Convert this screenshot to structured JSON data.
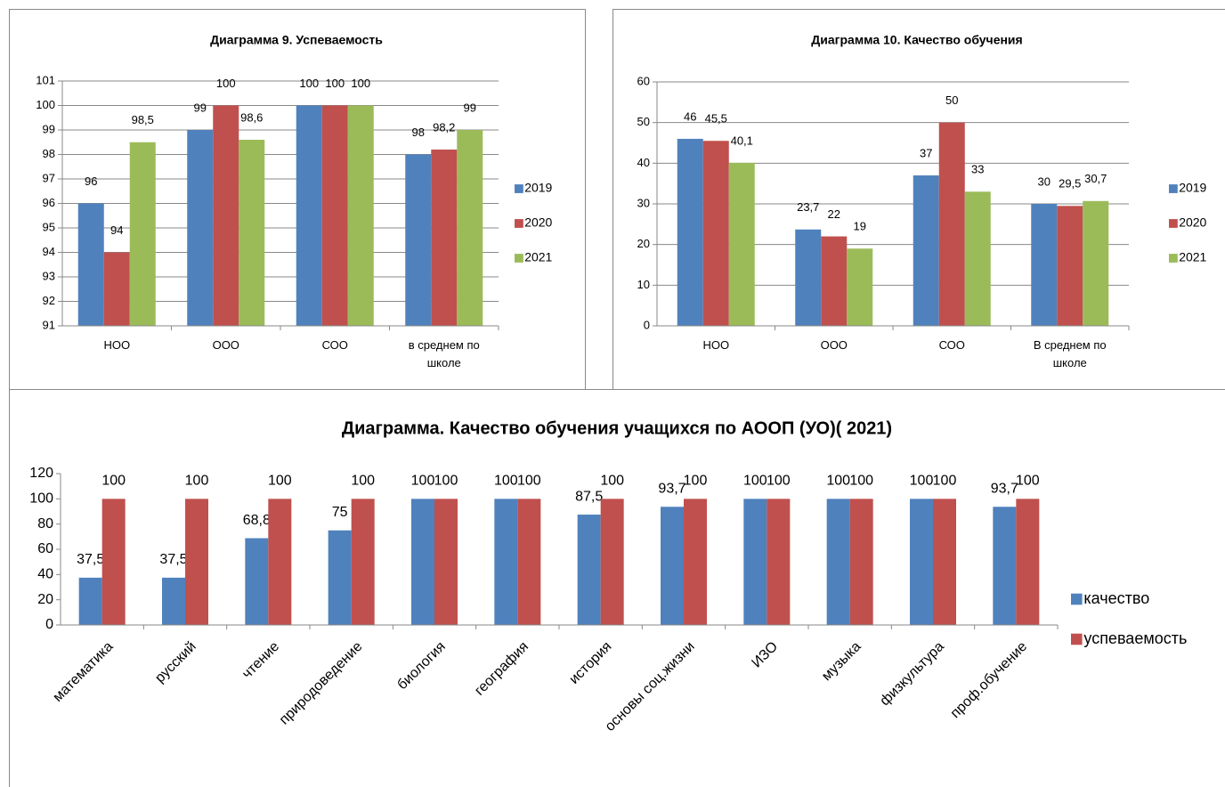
{
  "chart_data": [
    {
      "type": "bar",
      "title": "Диаграмма 9. Успеваемость",
      "categories": [
        "НОО",
        "ООО",
        "СОО",
        "в среднем по школе"
      ],
      "series": [
        {
          "name": "2019",
          "color": "#4f81bd",
          "values": [
            96,
            99,
            100,
            98
          ],
          "value_labels": [
            "96",
            "99",
            "100",
            "98"
          ]
        },
        {
          "name": "2020",
          "color": "#c0504d",
          "values": [
            94,
            100,
            100,
            98.2
          ],
          "value_labels": [
            "94",
            "100",
            "100",
            "98,2"
          ]
        },
        {
          "name": "2021",
          "color": "#9bbb59",
          "values": [
            98.5,
            98.6,
            100,
            99
          ],
          "value_labels": [
            "98,5",
            "98,6",
            "100",
            "99"
          ]
        }
      ],
      "ylim": [
        91,
        101
      ],
      "yticks": [
        91,
        92,
        93,
        94,
        95,
        96,
        97,
        98,
        99,
        100,
        101
      ],
      "grid": true,
      "legend": "right"
    },
    {
      "type": "bar",
      "title": "Диаграмма 10. Качество обучения",
      "categories": [
        "НОО",
        "ООО",
        "СОО",
        "В среднем по школе"
      ],
      "series": [
        {
          "name": "2019",
          "color": "#4f81bd",
          "values": [
            46,
            23.7,
            37,
            30
          ],
          "value_labels": [
            "46",
            "23,7",
            "37",
            "30"
          ]
        },
        {
          "name": "2020",
          "color": "#c0504d",
          "values": [
            45.5,
            22,
            50,
            29.5
          ],
          "value_labels": [
            "45,5",
            "22",
            "50",
            "29,5"
          ]
        },
        {
          "name": "2021",
          "color": "#9bbb59",
          "values": [
            40.1,
            19,
            33,
            30.7
          ],
          "value_labels": [
            "40,1",
            "19",
            "33",
            "30,7"
          ]
        }
      ],
      "ylim": [
        0,
        60
      ],
      "yticks": [
        0,
        10,
        20,
        30,
        40,
        50,
        60
      ],
      "grid": true,
      "legend": "right"
    },
    {
      "type": "bar",
      "title": "Диаграмма. Качество обучения учащихся по АООП (УО)( 2021)",
      "categories": [
        "математика",
        "русский",
        "чтение",
        "природоведение",
        "биология",
        "география",
        "история",
        "основы соц.жизни",
        "ИЗО",
        "музыка",
        "физкультура",
        "проф.обучение"
      ],
      "series": [
        {
          "name": "качество",
          "color": "#4f81bd",
          "values": [
            37.5,
            37.5,
            68.8,
            75,
            100,
            100,
            87.5,
            93.7,
            100,
            100,
            100,
            93.7
          ],
          "value_labels": [
            "37,5",
            "37,5",
            "68,8",
            "75",
            "100",
            "100",
            "87,5",
            "93,7",
            "100",
            "100",
            "100",
            "93,7"
          ]
        },
        {
          "name": "успеваемость",
          "color": "#c0504d",
          "values": [
            100,
            100,
            100,
            100,
            100,
            100,
            100,
            100,
            100,
            100,
            100,
            100
          ],
          "value_labels": [
            "100",
            "100",
            "100",
            "100",
            "100",
            "100",
            "100",
            "100",
            "100",
            "100",
            "100",
            "100"
          ]
        }
      ],
      "ylim": [
        0,
        120
      ],
      "yticks": [
        0,
        20,
        40,
        60,
        80,
        100,
        120
      ],
      "grid": false,
      "legend": "right"
    }
  ]
}
